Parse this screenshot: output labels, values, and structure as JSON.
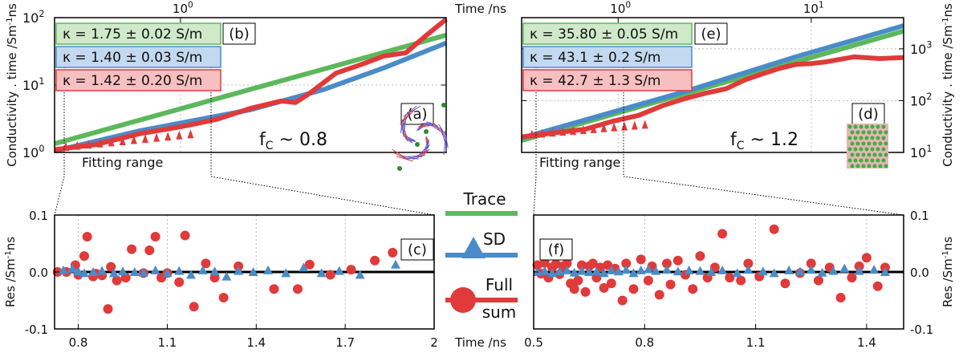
{
  "chart_data": [
    {
      "id": "left-top",
      "type": "line",
      "xscale": "log",
      "yscale": "log",
      "xlim": [
        0.72,
        2.0
      ],
      "ylim": [
        1.0,
        100.0
      ],
      "top_ticks": [
        {
          "v": 1.0,
          "base": "10",
          "exp": "0"
        },
        {
          "v": 10,
          "label": "10"
        }
      ],
      "yticks": [
        {
          "v": 1,
          "base": "10",
          "exp": "0"
        },
        {
          "v": 10,
          "base": "10",
          "exp": "1"
        },
        {
          "v": 100,
          "base": "10",
          "exp": "2"
        }
      ],
      "ylabel": "Conductivity . time /Sm",
      "ylabel_sup": "-1",
      "ylabel_tail": "ns",
      "panel_labels": [
        "(b)",
        "(a)"
      ],
      "kappa": [
        {
          "text": "κ = 1.75 ± 0.02 S/m",
          "color": "#5cb85c",
          "bg": "#cfe9c9"
        },
        {
          "text": "κ = 1.40 ± 0.03 S/m",
          "color": "#4a8cc7",
          "bg": "#c3d9ef"
        },
        {
          "text": "κ = 1.42 ± 0.20 S/m",
          "color": "#e03a3a",
          "bg": "#f6c0c0"
        }
      ],
      "fc_text": "f",
      "fc_sub": "C",
      "fc_value": " ~ 0.8",
      "fitting_label": "Fitting range",
      "series": [
        {
          "name": "Trace",
          "color": "#5cb85c",
          "x": [
            0.72,
            2.0
          ],
          "y": [
            1.35,
            55
          ]
        },
        {
          "name": "SD",
          "color": "#4a8cc7",
          "x": [
            0.72,
            0.9,
            1.2,
            1.45,
            1.7,
            2.0
          ],
          "y": [
            1.05,
            2.1,
            4.3,
            8.5,
            18,
            42
          ]
        },
        {
          "name": "Full sum",
          "color": "#e03a3a",
          "x": [
            0.72,
            0.8,
            0.9,
            1.0,
            1.1,
            1.2,
            1.3,
            1.35,
            1.4,
            1.5,
            1.6,
            1.7,
            1.8,
            1.9,
            2.0
          ],
          "y": [
            1.1,
            1.3,
            1.9,
            2.4,
            3.1,
            4.5,
            5.8,
            5.5,
            7.5,
            15,
            20,
            27,
            30,
            55,
            95
          ]
        }
      ]
    },
    {
      "id": "left-bottom",
      "type": "scatter",
      "xlim": [
        0.72,
        2.0
      ],
      "ylim": [
        -0.1,
        0.1
      ],
      "xticks": [
        "0.8",
        "1.1",
        "1.4",
        "1.7",
        "2"
      ],
      "xtick_values": [
        0.8,
        1.1,
        1.4,
        1.7,
        2.0
      ],
      "yticks": [
        "0.1",
        "0.0",
        "-0.1"
      ],
      "ytick_values": [
        0.1,
        0.0,
        -0.1
      ],
      "ylabel": "Res /Sm",
      "ylabel_sup": "-1",
      "ylabel_tail": "ns",
      "panel_label": "(c)",
      "red_points": [
        [
          0.73,
          0.0
        ],
        [
          0.76,
          0.0
        ],
        [
          0.79,
          0.012
        ],
        [
          0.8,
          -0.005
        ],
        [
          0.82,
          0.028
        ],
        [
          0.83,
          0.062
        ],
        [
          0.85,
          -0.008
        ],
        [
          0.86,
          -0.003
        ],
        [
          0.88,
          -0.006
        ],
        [
          0.9,
          -0.065
        ],
        [
          0.91,
          0.009
        ],
        [
          0.93,
          -0.015
        ],
        [
          0.96,
          -0.01
        ],
        [
          0.98,
          0.04
        ],
        [
          1.02,
          -0.002
        ],
        [
          1.04,
          0.038
        ],
        [
          1.06,
          0.062
        ],
        [
          1.08,
          -0.01
        ],
        [
          1.1,
          -0.002
        ],
        [
          1.14,
          -0.018
        ],
        [
          1.16,
          0.064
        ],
        [
          1.19,
          -0.061
        ],
        [
          1.23,
          0.015
        ],
        [
          1.26,
          -0.01
        ],
        [
          1.29,
          -0.045
        ],
        [
          1.34,
          0.01
        ],
        [
          1.46,
          -0.03
        ],
        [
          1.54,
          -0.03
        ],
        [
          1.58,
          0.013
        ],
        [
          1.65,
          -0.005
        ],
        [
          1.72,
          0.004
        ],
        [
          1.8,
          0.02
        ],
        [
          1.86,
          0.034
        ]
      ],
      "blue_points": [
        [
          0.75,
          0.003
        ],
        [
          0.78,
          0.006
        ],
        [
          0.8,
          0.001
        ],
        [
          0.82,
          -0.002
        ],
        [
          0.85,
          0.0
        ],
        [
          0.88,
          0.002
        ],
        [
          0.92,
          -0.002
        ],
        [
          0.95,
          0.001
        ],
        [
          0.99,
          0.0
        ],
        [
          1.02,
          -0.001
        ],
        [
          1.06,
          0.003
        ],
        [
          1.1,
          -0.002
        ],
        [
          1.14,
          0.002
        ],
        [
          1.18,
          -0.005
        ],
        [
          1.22,
          0.003
        ],
        [
          1.26,
          0.001
        ],
        [
          1.3,
          -0.008
        ],
        [
          1.34,
          0.002
        ],
        [
          1.39,
          0.0
        ],
        [
          1.44,
          0.003
        ],
        [
          1.5,
          -0.002
        ],
        [
          1.56,
          0.008
        ],
        [
          1.62,
          -0.002
        ],
        [
          1.68,
          0.002
        ],
        [
          1.75,
          -0.005
        ],
        [
          1.87,
          0.013
        ]
      ]
    },
    {
      "id": "right-top",
      "type": "line",
      "xscale": "log",
      "yscale": "log",
      "xlim": [
        0.5,
        1.5
      ],
      "ylim": [
        10,
        4000
      ],
      "top_ticks": [
        {
          "v": 0.66,
          "base": "10",
          "exp": "0"
        },
        {
          "v": 1.15,
          "base": "10",
          "exp": "1"
        }
      ],
      "yticks": [
        {
          "v": 10,
          "base": "10",
          "exp": "1"
        },
        {
          "v": 100,
          "base": "10",
          "exp": "2"
        },
        {
          "v": 1000,
          "base": "10",
          "exp": "3"
        }
      ],
      "ylabel": "Conductivity . time /Sm",
      "ylabel_sup": "-1",
      "ylabel_tail": "ns",
      "panel_labels": [
        "(e)",
        "(d)"
      ],
      "kappa": [
        {
          "text": "κ = 35.80 ± 0.05 S/m",
          "color": "#5cb85c",
          "bg": "#cfe9c9"
        },
        {
          "text": "κ = 43.1 ± 0.2 S/m",
          "color": "#4a8cc7",
          "bg": "#c3d9ef"
        },
        {
          "text": "κ = 42.7 ± 1.3 S/m",
          "color": "#e03a3a",
          "bg": "#f6c0c0"
        }
      ],
      "fc_text": "f",
      "fc_sub": "C",
      "fc_value": " ~ 1.2",
      "fitting_label": "Fitting range",
      "series": [
        {
          "name": "Trace",
          "color": "#5cb85c",
          "x": [
            0.5,
            1.5
          ],
          "y": [
            17,
            2200
          ]
        },
        {
          "name": "SD",
          "color": "#4a8cc7",
          "x": [
            0.5,
            0.8,
            1.1,
            1.5
          ],
          "y": [
            19,
            150,
            700,
            2800
          ]
        },
        {
          "name": "Full sum",
          "color": "#e03a3a",
          "x": [
            0.5,
            0.55,
            0.6,
            0.65,
            0.7,
            0.75,
            0.8,
            0.85,
            0.9,
            0.95,
            1.0,
            1.05,
            1.1,
            1.15,
            1.2,
            1.3,
            1.4,
            1.5
          ],
          "y": [
            20,
            24,
            28,
            40,
            52,
            80,
            110,
            140,
            170,
            250,
            330,
            420,
            500,
            520,
            560,
            700,
            650,
            680
          ]
        }
      ]
    },
    {
      "id": "right-bottom",
      "type": "scatter",
      "xlim": [
        0.5,
        1.5
      ],
      "ylim": [
        -0.1,
        0.1
      ],
      "xticks": [
        "0.5",
        "0.8",
        "1.1",
        "1.4"
      ],
      "xtick_values": [
        0.5,
        0.8,
        1.1,
        1.4
      ],
      "yticks": [
        "0.1",
        "0.0",
        "-0.1"
      ],
      "ytick_values": [
        0.1,
        0.0,
        -0.1
      ],
      "ylabel": "Res /Sm",
      "ylabel_sup": "-1",
      "ylabel_tail": "ns",
      "panel_label": "(f)",
      "red_points": [
        [
          0.51,
          0.012
        ],
        [
          0.52,
          -0.003
        ],
        [
          0.53,
          0.016
        ],
        [
          0.54,
          -0.01
        ],
        [
          0.55,
          0.008
        ],
        [
          0.56,
          0.014
        ],
        [
          0.57,
          -0.004
        ],
        [
          0.58,
          0.01
        ],
        [
          0.59,
          0.015
        ],
        [
          0.6,
          -0.02
        ],
        [
          0.61,
          -0.03
        ],
        [
          0.62,
          -0.015
        ],
        [
          0.63,
          0.012
        ],
        [
          0.64,
          -0.035
        ],
        [
          0.65,
          0.01
        ],
        [
          0.66,
          0.015
        ],
        [
          0.67,
          -0.01
        ],
        [
          0.68,
          0.008
        ],
        [
          0.69,
          -0.028
        ],
        [
          0.7,
          0.012
        ],
        [
          0.71,
          -0.02
        ],
        [
          0.72,
          0.006
        ],
        [
          0.74,
          -0.05
        ],
        [
          0.75,
          0.015
        ],
        [
          0.77,
          -0.03
        ],
        [
          0.79,
          0.022
        ],
        [
          0.81,
          -0.015
        ],
        [
          0.82,
          0.01
        ],
        [
          0.84,
          -0.04
        ],
        [
          0.86,
          0.015
        ],
        [
          0.87,
          -0.022
        ],
        [
          0.89,
          0.02
        ],
        [
          0.91,
          -0.005
        ],
        [
          0.93,
          -0.03
        ],
        [
          0.95,
          0.028
        ],
        [
          0.97,
          -0.01
        ],
        [
          0.99,
          0.008
        ],
        [
          1.01,
          0.067
        ],
        [
          1.03,
          -0.01
        ],
        [
          1.06,
          -0.015
        ],
        [
          1.08,
          0.015
        ],
        [
          1.11,
          -0.008
        ],
        [
          1.15,
          0.075
        ],
        [
          1.18,
          -0.02
        ],
        [
          1.22,
          -0.002
        ],
        [
          1.25,
          0.015
        ],
        [
          1.27,
          -0.015
        ],
        [
          1.3,
          0.008
        ],
        [
          1.33,
          -0.045
        ],
        [
          1.36,
          -0.01
        ],
        [
          1.38,
          0.01
        ],
        [
          1.4,
          0.025
        ],
        [
          1.43,
          -0.025
        ],
        [
          1.45,
          0.008
        ]
      ],
      "blue_points": [
        [
          0.51,
          0.0
        ],
        [
          0.53,
          0.002
        ],
        [
          0.55,
          -0.002
        ],
        [
          0.57,
          0.001
        ],
        [
          0.59,
          0.003
        ],
        [
          0.61,
          -0.001
        ],
        [
          0.63,
          0.002
        ],
        [
          0.65,
          0.0
        ],
        [
          0.67,
          0.001
        ],
        [
          0.69,
          -0.002
        ],
        [
          0.71,
          0.003
        ],
        [
          0.73,
          0.001
        ],
        [
          0.75,
          0.004
        ],
        [
          0.77,
          -0.002
        ],
        [
          0.79,
          0.003
        ],
        [
          0.81,
          0.005
        ],
        [
          0.83,
          0.002
        ],
        [
          0.86,
          0.004
        ],
        [
          0.89,
          0.001
        ],
        [
          0.92,
          0.003
        ],
        [
          0.95,
          0.002
        ],
        [
          0.98,
          0.0
        ],
        [
          1.01,
          0.003
        ],
        [
          1.05,
          -0.002
        ],
        [
          1.08,
          0.004
        ],
        [
          1.12,
          0.001
        ],
        [
          1.15,
          -0.002
        ],
        [
          1.19,
          0.003
        ],
        [
          1.22,
          0.001
        ],
        [
          1.25,
          0.004
        ],
        [
          1.28,
          -0.001
        ],
        [
          1.31,
          0.002
        ],
        [
          1.34,
          0.006
        ],
        [
          1.38,
          0.002
        ],
        [
          1.42,
          0.004
        ],
        [
          1.45,
          0.0
        ]
      ]
    }
  ],
  "labels": {
    "time_top": "Time /ns",
    "time_bottom": "Time /ns",
    "legend": [
      "Trace",
      "SD",
      "Full",
      "sum"
    ]
  },
  "colors": {
    "green": "#5cb85c",
    "blue": "#4a8cc7",
    "red": "#e03a3a"
  }
}
